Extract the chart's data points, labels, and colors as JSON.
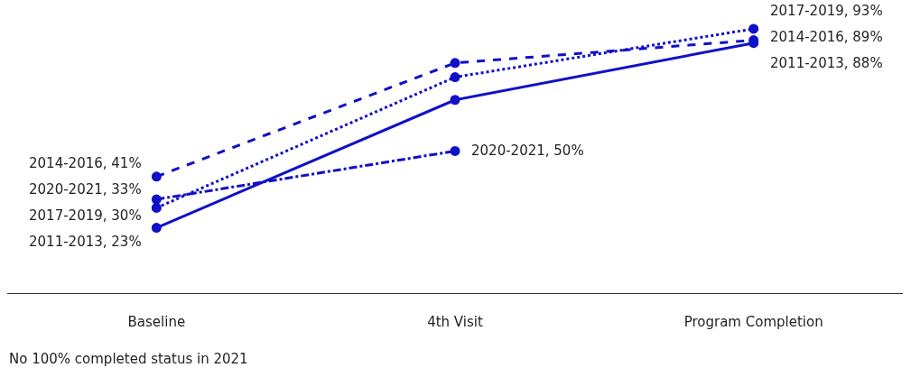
{
  "chart_data": {
    "type": "line",
    "categories": [
      "Baseline",
      "4th Visit",
      "Program Completion"
    ],
    "series": [
      {
        "color": "#1010c8",
        "line_style": "solid",
        "values": [
          23,
          68,
          88
        ],
        "value_labels": [
          "2011-2013, 23%",
          null,
          "2011-2013, 88%"
        ]
      },
      {
        "color": "#1010c8",
        "line_style": "dashed",
        "values": [
          41,
          81,
          89
        ],
        "value_labels": [
          "2014-2016, 41%",
          null,
          "2014-2016, 89%"
        ]
      },
      {
        "color": "#1010c8",
        "line_style": "dotted",
        "values": [
          30,
          76,
          93
        ],
        "value_labels": [
          "2017-2019, 30%",
          null,
          "2017-2019, 93%"
        ]
      },
      {
        "color": "#1010c8",
        "line_style": "dashdot",
        "values": [
          33,
          50,
          null
        ],
        "value_labels": [
          "2020-2021, 33%",
          "2020-2021, 50%",
          null
        ]
      }
    ],
    "tick_labels": "x",
    "marker": "circle",
    "legend": false,
    "grid": false,
    "annotations": [
      "No 100% completed status in 2021"
    ]
  }
}
